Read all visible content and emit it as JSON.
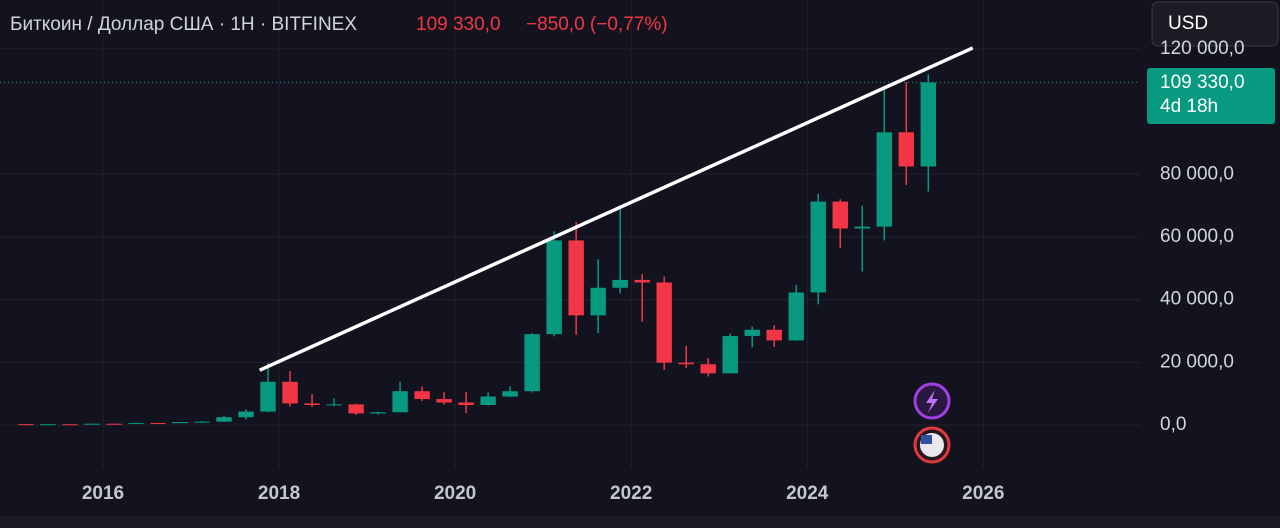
{
  "chart_data": {
    "type": "candlestick",
    "title": "Биткоин / Доллар США · 1Н · BITFINEX",
    "last_price": {
      "value": 109330,
      "label": "109 330,0"
    },
    "change": "−850,0 (−0,77%)",
    "currency": "USD",
    "countdown": "4d 18h",
    "up_color": "#089981",
    "down_color": "#f23645",
    "xlim": [
      2014.83,
      2027.78
    ],
    "ylim": [
      -13700,
      135600
    ],
    "xticks": [
      2016,
      2018,
      2020,
      2022,
      2024,
      2026
    ],
    "yticks": [
      {
        "value": 0,
        "label": "0,0"
      },
      {
        "value": 20000,
        "label": "20 000,0"
      },
      {
        "value": 40000,
        "label": "40 000,0"
      },
      {
        "value": 60000,
        "label": "60 000,0"
      },
      {
        "value": 80000,
        "label": "80 000,0"
      },
      {
        "value": 120000,
        "label": "120 000,0"
      }
    ],
    "grid": true,
    "trendline": {
      "x": [
        2017.78,
        2025.88
      ],
      "y": [
        17500,
        120300
      ],
      "color": "#ffffff"
    },
    "x": [
      2015.125,
      2015.375,
      2015.625,
      2015.875,
      2016.125,
      2016.375,
      2016.625,
      2016.875,
      2017.125,
      2017.375,
      2017.625,
      2017.875,
      2018.125,
      2018.375,
      2018.625,
      2018.875,
      2019.125,
      2019.375,
      2019.625,
      2019.875,
      2020.125,
      2020.375,
      2020.625,
      2020.875,
      2021.125,
      2021.375,
      2021.625,
      2021.875,
      2022.125,
      2022.375,
      2022.625,
      2022.875,
      2023.125,
      2023.375,
      2023.625,
      2023.875,
      2024.125,
      2024.375,
      2024.625,
      2024.875,
      2025.125,
      2025.375
    ],
    "open": [
      300,
      250,
      260,
      240,
      430,
      415,
      670,
      610,
      960,
      1080,
      2500,
      4300,
      13800,
      6900,
      6400,
      6600,
      3700,
      4100,
      10800,
      8300,
      7200,
      6400,
      9100,
      10800,
      29000,
      58900,
      35000,
      43800,
      46300,
      45500,
      19900,
      19400,
      16500,
      28400,
      30400,
      27000,
      42300,
      71300,
      62700,
      63300,
      93400,
      82500
    ],
    "high": [
      320,
      300,
      320,
      500,
      450,
      780,
      680,
      980,
      1300,
      3000,
      5000,
      19800,
      17200,
      9900,
      8500,
      6800,
      4200,
      13800,
      12300,
      10500,
      10500,
      10400,
      12400,
      29300,
      61800,
      64800,
      52900,
      69000,
      48200,
      47400,
      25200,
      21400,
      29200,
      31400,
      31800,
      44700,
      73800,
      72000,
      70000,
      108000,
      109400,
      111900
    ],
    "low": [
      200,
      220,
      200,
      230,
      360,
      400,
      540,
      600,
      880,
      1060,
      1800,
      4100,
      5900,
      5800,
      6000,
      3200,
      3400,
      4000,
      7700,
      6500,
      3800,
      6200,
      8900,
      10400,
      28300,
      28800,
      29300,
      42000,
      33000,
      17600,
      18200,
      15500,
      16500,
      24800,
      24900,
      26900,
      38500,
      56500,
      49000,
      58900,
      76600,
      74500
    ],
    "close": [
      250,
      260,
      240,
      430,
      415,
      670,
      610,
      960,
      1080,
      2500,
      4300,
      13800,
      6900,
      6400,
      6600,
      3700,
      4100,
      10800,
      8300,
      7200,
      6400,
      9100,
      10800,
      29000,
      58900,
      35000,
      43800,
      46300,
      45500,
      19900,
      19400,
      16500,
      28400,
      30400,
      27000,
      42300,
      71300,
      62700,
      63300,
      93400,
      82500,
      109330
    ]
  }
}
